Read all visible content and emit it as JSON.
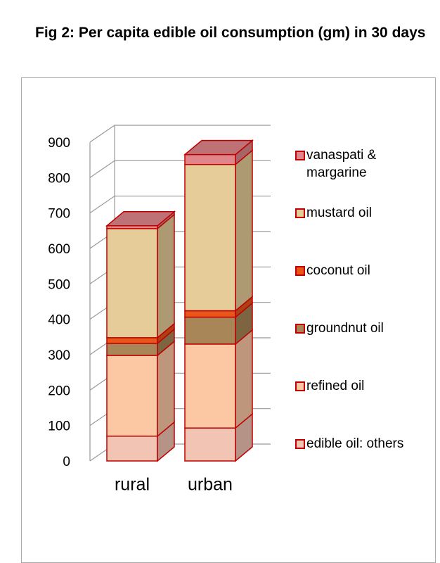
{
  "chart_data": {
    "type": "bar",
    "stacked": true,
    "three_d": true,
    "title": "Fig 2: Per capita edible oil consumption (gm) in 30 days",
    "categories": [
      "rural",
      "urban"
    ],
    "series": [
      {
        "name": "edible oil: others",
        "color": "#f2c4b4",
        "values": [
          70,
          93
        ]
      },
      {
        "name": "refined oil",
        "color": "#fcc8a4",
        "values": [
          228,
          237
        ]
      },
      {
        "name": "groundnut oil",
        "color": "#a88658",
        "values": [
          34,
          76
        ]
      },
      {
        "name": "coconut oil",
        "color": "#e8561a",
        "values": [
          16,
          18
        ]
      },
      {
        "name": "mustard oil",
        "color": "#e6cc98",
        "values": [
          308,
          413
        ]
      },
      {
        "name": "vanaspati & margarine",
        "color": "#e0868a",
        "values": [
          8,
          28
        ]
      }
    ],
    "ylim": [
      0,
      900
    ],
    "yticks": [
      0,
      100,
      200,
      300,
      400,
      500,
      600,
      700,
      800,
      900
    ],
    "grid": true,
    "legend": "right"
  }
}
